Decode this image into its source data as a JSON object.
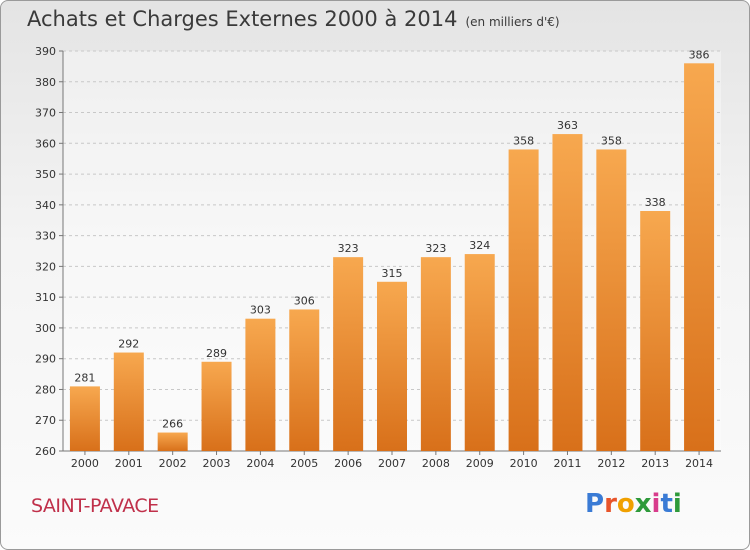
{
  "title": "Achats et Charges Externes 2000 à 2014",
  "unit": "(en milliers d'€)",
  "commune": "SAINT-PAVACE",
  "logo": {
    "letters": [
      "P",
      "r",
      "o",
      "x",
      "i",
      "t",
      "i"
    ],
    "colors": [
      "#3a7bd5",
      "#e8542a",
      "#f0a000",
      "#2e9a3a",
      "#d83c8c",
      "#3a7bd5",
      "#2e9a3a"
    ]
  },
  "chart_data": {
    "type": "bar",
    "categories": [
      "2000",
      "2001",
      "2002",
      "2003",
      "2004",
      "2005",
      "2006",
      "2007",
      "2008",
      "2009",
      "2010",
      "2011",
      "2012",
      "2013",
      "2014"
    ],
    "values": [
      281,
      292,
      266,
      289,
      303,
      306,
      323,
      315,
      323,
      324,
      358,
      363,
      358,
      338,
      386
    ],
    "yticks": [
      260,
      270,
      280,
      290,
      300,
      310,
      320,
      330,
      340,
      350,
      360,
      370,
      380,
      390
    ],
    "ylim": [
      260,
      390
    ],
    "grid": true,
    "bar_color": "#e8842a"
  }
}
